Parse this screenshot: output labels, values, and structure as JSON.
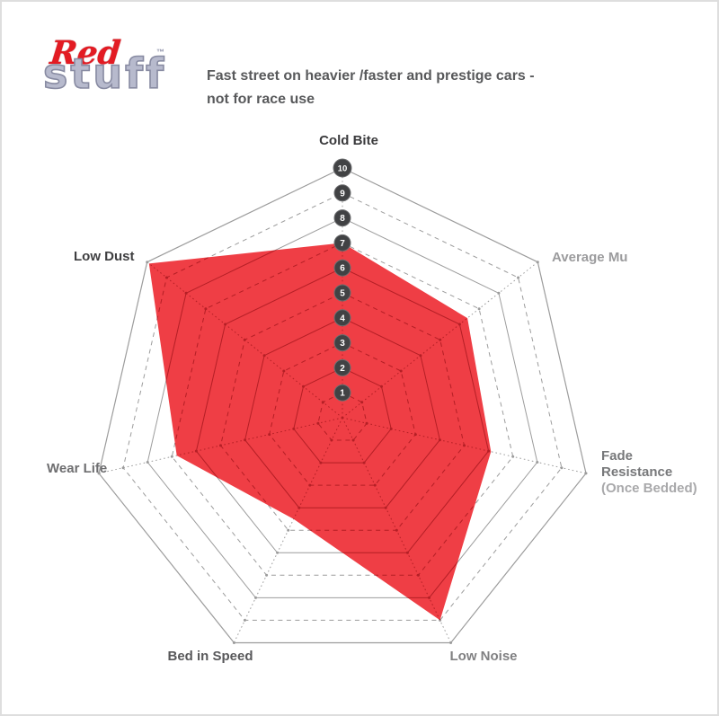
{
  "page": {
    "background": "#ffffff",
    "border_color": "#dedede"
  },
  "header": {
    "logo": {
      "word1": "Red",
      "word2": "stuff",
      "trademark": "™",
      "word1_color": "#e31b23",
      "word2_color": "#b7bacd",
      "word2_outline": "#888ba2"
    },
    "subtitle_line1": "Fast street on heavier /faster and prestige cars -",
    "subtitle_line2": "not for race use",
    "subtitle_color": "#58595b"
  },
  "chart_data": {
    "type": "radar",
    "series_name": "EBC Redstuff brake pad performance",
    "categories": [
      "Cold Bite",
      "Average Mu",
      "Fade Resistance (Once Bedded)",
      "Low Noise",
      "Bed in Speed",
      "Wear Life",
      "Low Dust"
    ],
    "values": [
      7,
      6.4,
      6.1,
      9,
      4.5,
      6.8,
      9.9
    ],
    "rlim": [
      0,
      10
    ],
    "rings": 10,
    "scale_ticks": [
      1,
      2,
      3,
      4,
      5,
      6,
      7,
      8,
      9,
      10
    ],
    "grid": "heptagon rings, even rings solid / odd rings dashed, dotted spokes, dot markers at ring-axis intersections",
    "legend": "none",
    "fill_color": "#ec1c24",
    "fill_opacity": 0.85,
    "inner_grid_color": "#8a1016",
    "grid_color": "#9c9c9c",
    "tick_circle_color": "#414244",
    "tick_circle_edge": "#6f7072",
    "tick_text_color": "#ffffff",
    "labels": [
      {
        "text": "Cold Bite",
        "color": "#3a3a3c"
      },
      {
        "text": "Average Mu",
        "color": "#9b9b9d"
      },
      {
        "line1": "Fade",
        "line2": "Resistance",
        "line3": "(Once Bedded)",
        "color": "#77787a",
        "line3_color": "#a9a9ab"
      },
      {
        "text": "Low Noise",
        "color": "#808082"
      },
      {
        "text": "Bed in Speed",
        "color": "#58585a"
      },
      {
        "text": "Wear Life",
        "color": "#6e6e70"
      },
      {
        "text": "Low Dust",
        "color": "#3f3f41"
      }
    ]
  }
}
